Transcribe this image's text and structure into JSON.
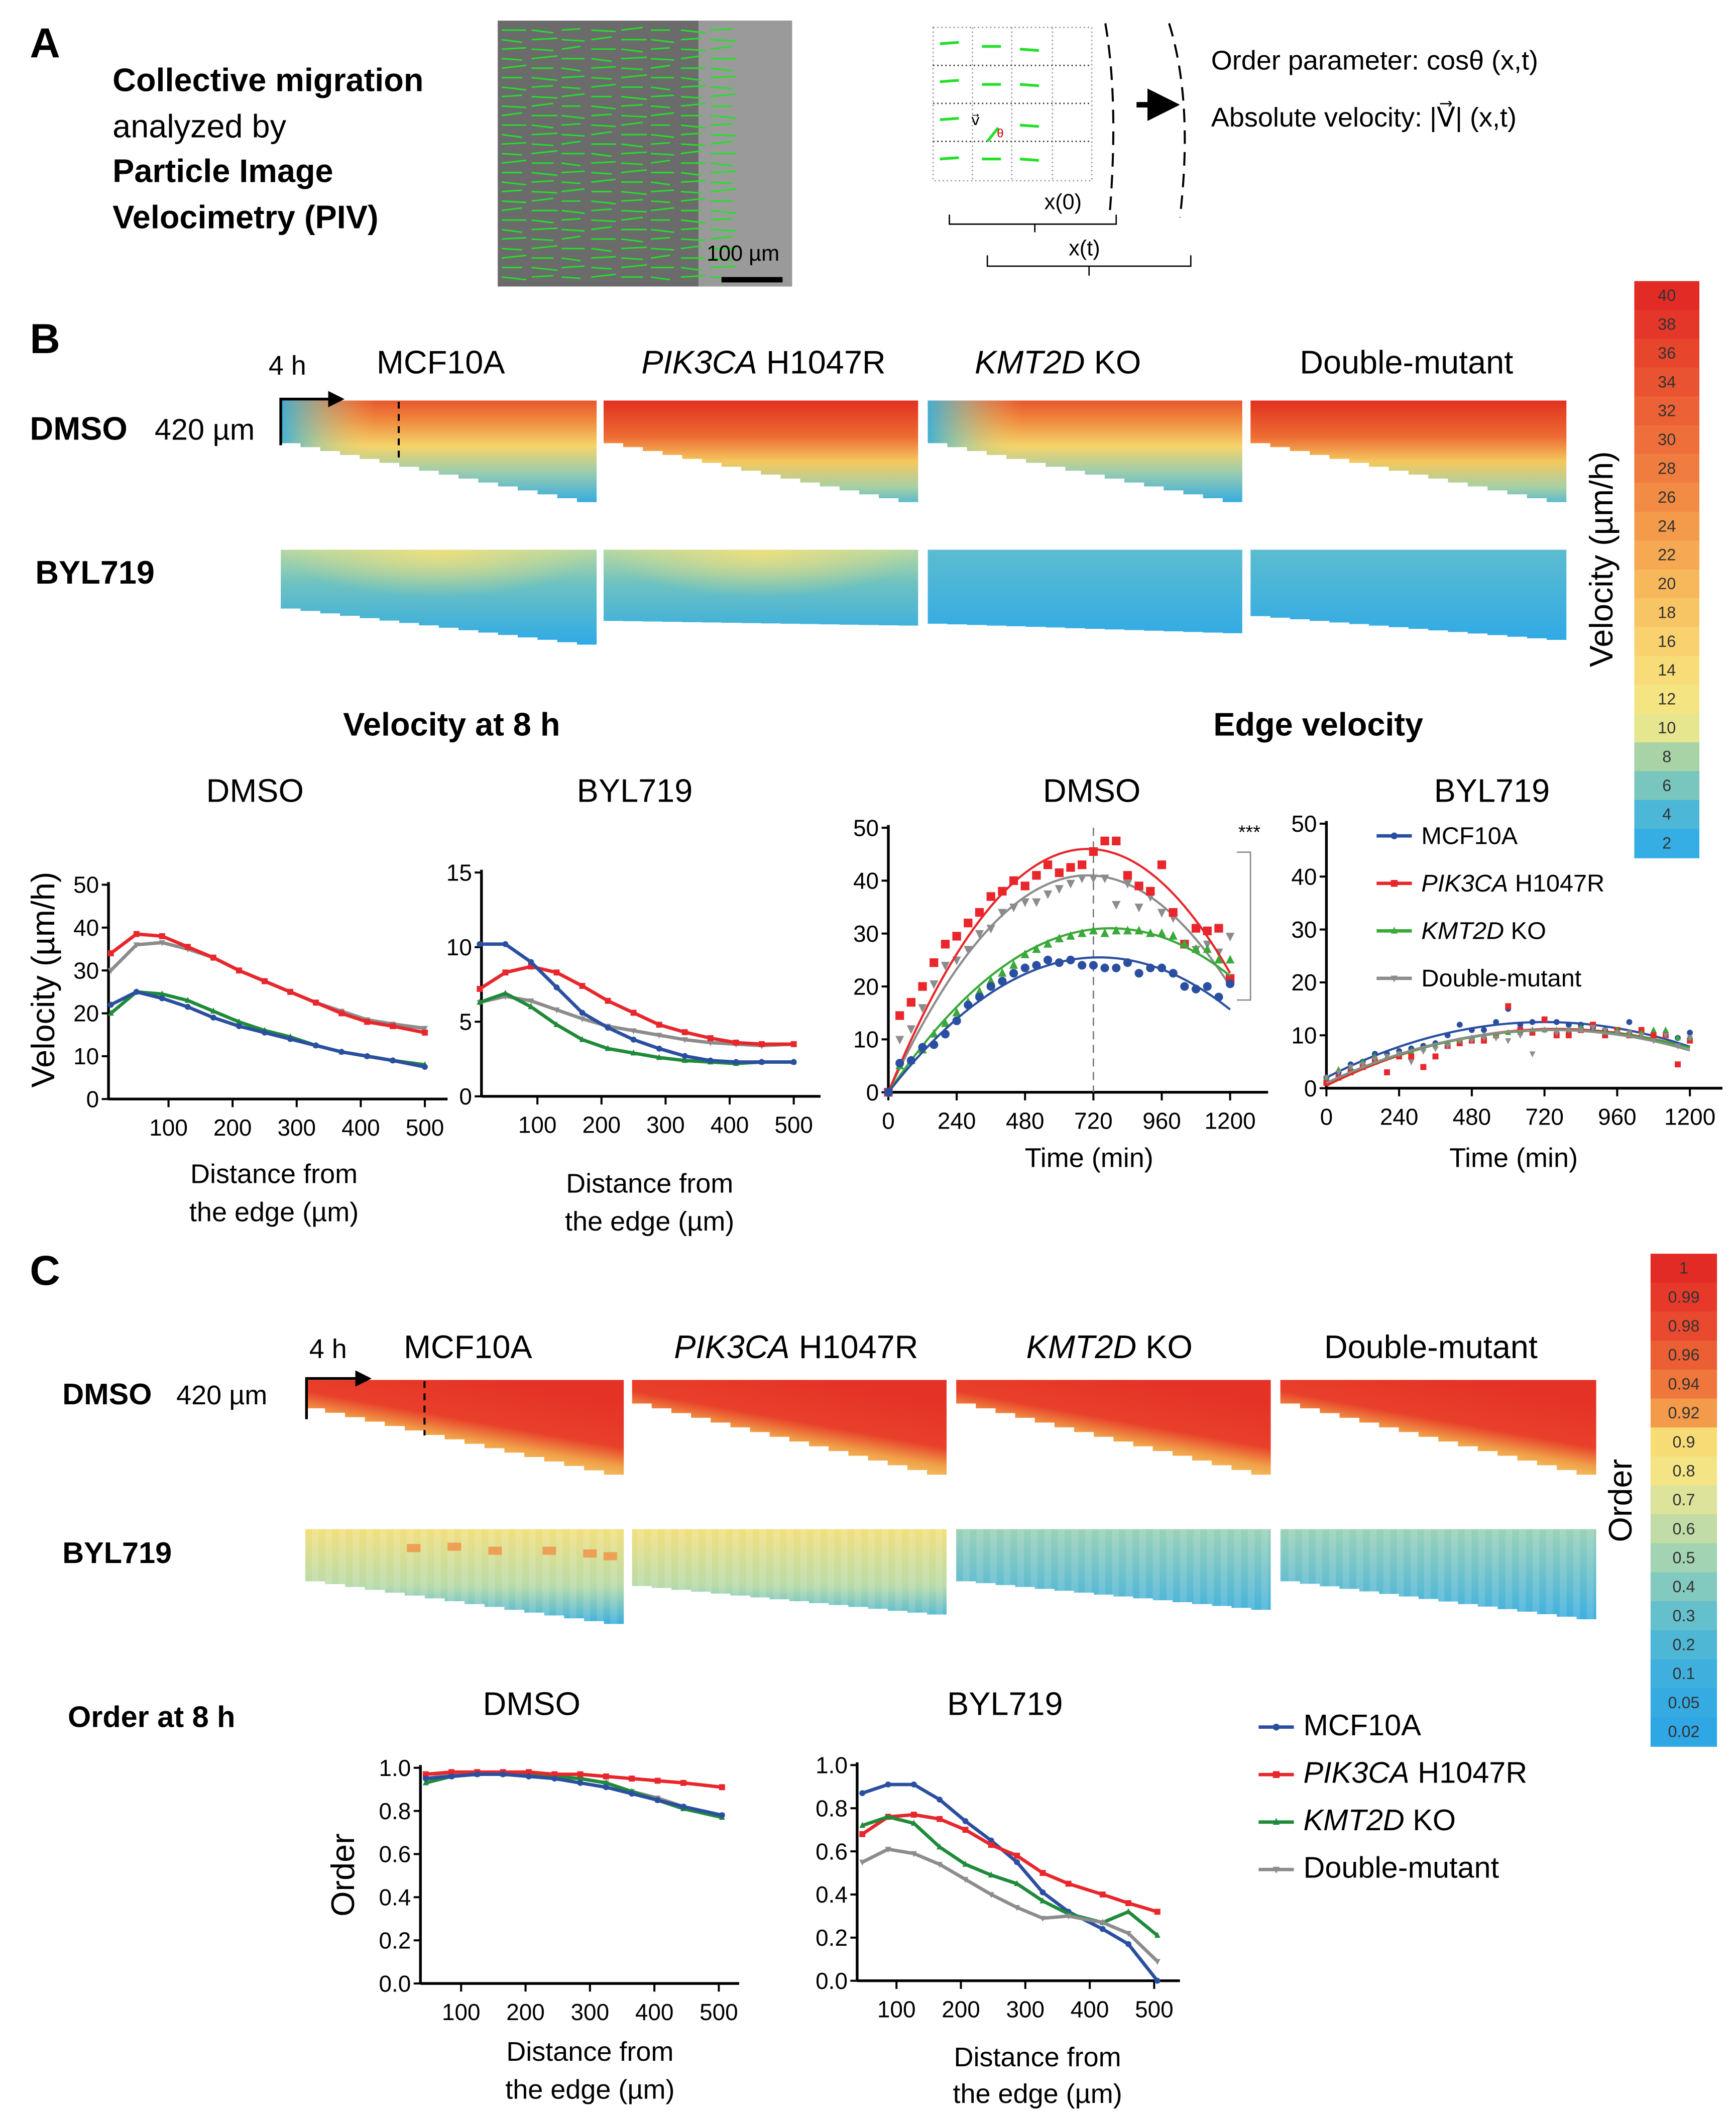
{
  "panel_a": {
    "letter": "A",
    "title_lines": [
      {
        "text": "Collective migration",
        "bold": true
      },
      {
        "text": "analyzed by",
        "bold": false
      },
      {
        "text": "Particle Image",
        "bold": true
      },
      {
        "text": "Velocimetry (PIV)",
        "bold": true
      }
    ],
    "scale_bar_label": "100 µm",
    "vector_label": "v⃗",
    "angle_label": "θ",
    "x0_label": "x(0)",
    "xt_label": "x(t)",
    "order_parameter_label": "Order parameter: cosθ (x,t)",
    "absolute_velocity_label": "Absolute velocity:  |V⃗| (x,t)",
    "vector_color": "#22e02a"
  },
  "conditions": [
    {
      "italic": "",
      "text": "MCF10A"
    },
    {
      "italic": "PIK3CA",
      "text": " H1047R"
    },
    {
      "italic": "KMT2D",
      "text": " KO"
    },
    {
      "italic": "",
      "text": "Double-mutant"
    }
  ],
  "panel_b": {
    "letter": "B",
    "time_label": "4 h",
    "distance_label": "420 µm",
    "row_labels": [
      "DMSO",
      "BYL719"
    ],
    "colorbar_title": "Velocity (µm/h)",
    "colorbar_ticks": [
      "40",
      "38",
      "36",
      "34",
      "32",
      "30",
      "28",
      "26",
      "24",
      "22",
      "20",
      "18",
      "16",
      "14",
      "12",
      "10",
      "8",
      "6",
      "4",
      "2"
    ],
    "colorbar_colors": [
      "#e32b26",
      "#e5362a",
      "#e8452d",
      "#ea5331",
      "#ec6135",
      "#ee6f3a",
      "#f07d3f",
      "#f28b44",
      "#f49a4b",
      "#f6a852",
      "#f7b75b",
      "#f8c565",
      "#f9d16f",
      "#f8dc78",
      "#f5e582",
      "#e6e68e",
      "#a8d3a6",
      "#78c6bd",
      "#4db7d8",
      "#34aee4"
    ],
    "velocity_8h_title": "Velocity at 8 h",
    "edge_velocity_title": "Edge velocity",
    "significance": "***"
  },
  "panel_c": {
    "letter": "C",
    "time_label": "4 h",
    "distance_label": "420 µm",
    "row_labels": [
      "DMSO",
      "BYL719"
    ],
    "colorbar_title": "Order",
    "colorbar_ticks": [
      "1",
      "0.99",
      "0.98",
      "0.96",
      "0.94",
      "0.92",
      "0.9",
      "0.8",
      "0.7",
      "0.6",
      "0.5",
      "0.4",
      "0.3",
      "0.2",
      "0.1",
      "0.05",
      "0.02"
    ],
    "colorbar_colors": [
      "#e32b26",
      "#e6392a",
      "#e9492e",
      "#ec5e34",
      "#ef773c",
      "#f39b4b",
      "#f7dc76",
      "#f3e486",
      "#dde39a",
      "#c1dca6",
      "#a2d3b2",
      "#82c9bf",
      "#64c0cc",
      "#4fb7d6",
      "#3fb0de",
      "#36abe2",
      "#2fa7e5"
    ],
    "order_8h_title": "Order at 8 h"
  },
  "chart_data": [
    {
      "type": "line",
      "title": "DMSO",
      "xlabel": [
        "Distance from",
        "the edge (µm)"
      ],
      "ylabel": "Velocity (µm/h)",
      "xlim": [
        0,
        530
      ],
      "ylim": [
        0,
        50
      ],
      "xticks": [
        100,
        200,
        300,
        400,
        500
      ],
      "yticks": [
        0,
        10,
        20,
        30,
        40,
        50
      ],
      "x": [
        10,
        50,
        90,
        130,
        170,
        210,
        250,
        290,
        330,
        370,
        410,
        450,
        500
      ],
      "series": [
        {
          "name": "Double-mutant",
          "color": "#8c8c8c",
          "marker": "triangle-down",
          "values": [
            30,
            36,
            36.5,
            35,
            33,
            30,
            27.5,
            25,
            22.5,
            20.5,
            18.5,
            17.5,
            16.5
          ]
        },
        {
          "name": "PIK3CA H1047R",
          "color": "#e8262b",
          "marker": "square",
          "values": [
            34,
            38.5,
            38,
            35.5,
            33,
            30,
            27.5,
            25,
            22.5,
            20,
            18,
            17,
            15.5
          ]
        },
        {
          "name": "KMT2D KO",
          "color": "#1f8a3a",
          "marker": "triangle-up",
          "values": [
            20,
            25,
            24.5,
            23,
            20.5,
            18,
            16,
            14.5,
            12.5,
            11,
            10,
            9,
            8
          ]
        },
        {
          "name": "MCF10A",
          "color": "#2b4fa0",
          "marker": "circle",
          "values": [
            22,
            25,
            23.5,
            21.5,
            19,
            17,
            15.5,
            14,
            12.5,
            11,
            10,
            9,
            7.5
          ]
        }
      ]
    },
    {
      "type": "line",
      "title": "BYL719",
      "xlabel": [
        "Distance from",
        "the edge (µm)"
      ],
      "ylabel": "",
      "xlim": [
        0,
        540
      ],
      "ylim": [
        0,
        15
      ],
      "xticks": [
        100,
        200,
        300,
        400,
        500
      ],
      "yticks": [
        0,
        5,
        10,
        15
      ],
      "x": [
        10,
        50,
        90,
        130,
        170,
        210,
        250,
        290,
        330,
        370,
        410,
        450,
        500
      ],
      "series": [
        {
          "name": "Double-mutant",
          "color": "#8c8c8c",
          "marker": "triangle-down",
          "values": [
            6.3,
            6.7,
            6.4,
            5.8,
            5.2,
            4.7,
            4.4,
            4.1,
            3.8,
            3.6,
            3.5,
            3.4,
            3.5
          ]
        },
        {
          "name": "PIK3CA H1047R",
          "color": "#e8262b",
          "marker": "square",
          "values": [
            7.2,
            8.3,
            8.7,
            8.3,
            7.4,
            6.4,
            5.6,
            4.8,
            4.3,
            3.9,
            3.6,
            3.5,
            3.5
          ]
        },
        {
          "name": "KMT2D KO",
          "color": "#1f8a3a",
          "marker": "triangle-up",
          "values": [
            6.3,
            6.9,
            6.0,
            4.8,
            3.8,
            3.2,
            2.9,
            2.6,
            2.4,
            2.3,
            2.2,
            2.3,
            2.3
          ]
        },
        {
          "name": "MCF10A",
          "color": "#2b4fa0",
          "marker": "circle",
          "values": [
            10.2,
            10.2,
            9.0,
            7.3,
            5.6,
            4.6,
            3.8,
            3.2,
            2.7,
            2.4,
            2.3,
            2.3,
            2.3
          ]
        }
      ]
    },
    {
      "type": "scatter",
      "title": "DMSO",
      "xlabel": [
        "Time (min)"
      ],
      "ylabel": "",
      "xlim": [
        0,
        1330
      ],
      "ylim": [
        0,
        50
      ],
      "xticks": [
        0,
        240,
        480,
        720,
        960,
        1200
      ],
      "yticks": [
        0,
        10,
        20,
        30,
        40,
        50
      ],
      "reference_line_x": 720,
      "x": [
        0,
        40,
        80,
        120,
        160,
        200,
        240,
        280,
        320,
        360,
        400,
        440,
        480,
        520,
        560,
        600,
        640,
        680,
        720,
        760,
        800,
        840,
        880,
        920,
        960,
        1000,
        1040,
        1080,
        1120,
        1160,
        1200
      ],
      "series": [
        {
          "name": "Double-mutant",
          "color": "#8c8c8c",
          "marker": "triangle-down",
          "fit": {
            "start": 0,
            "peak_time": 700,
            "peak_value": 41
          },
          "values": [
            0,
            10,
            12,
            16,
            20.5,
            24,
            25,
            27,
            30,
            31,
            34,
            35,
            36,
            36,
            37.5,
            38.5,
            39.5,
            40.5,
            40.5,
            40.5,
            35.5,
            39.5,
            35,
            37,
            34,
            33,
            28,
            27,
            28,
            26.5,
            29.5
          ]
        },
        {
          "name": "PIK3CA H1047R",
          "color": "#e8262b",
          "marker": "square",
          "fit": {
            "start": 0,
            "peak_time": 700,
            "peak_value": 46
          },
          "values": [
            0,
            14.5,
            17,
            20,
            24.5,
            28,
            29.5,
            32,
            34,
            37,
            38,
            40,
            39,
            41,
            43,
            41.5,
            42.5,
            43,
            45.5,
            47.5,
            47.5,
            41,
            39,
            38,
            43,
            34,
            28,
            31,
            30.5,
            31,
            21.5
          ]
        },
        {
          "name": "KMT2D KO",
          "color": "#3aa83a",
          "marker": "triangle-up",
          "fit": {
            "start": 0,
            "peak_time": 780,
            "peak_value": 31
          },
          "values": [
            0,
            5,
            6,
            8,
            11,
            13,
            15,
            17,
            19,
            21,
            22.5,
            24,
            26,
            27,
            28,
            29,
            29.5,
            30,
            30.5,
            30,
            30.5,
            30.5,
            30.5,
            30,
            30,
            29.5,
            28,
            27,
            27,
            25,
            25
          ]
        },
        {
          "name": "MCF10A",
          "color": "#2b4fa0",
          "marker": "circle",
          "fit": {
            "start": 0,
            "peak_time": 740,
            "peak_value": 25.5
          },
          "values": [
            0,
            5.5,
            6,
            8.5,
            9,
            11,
            13.5,
            16.5,
            18,
            20,
            21,
            22.5,
            23.5,
            24,
            25,
            24.5,
            25,
            24,
            24,
            23.5,
            23.5,
            24.5,
            22.5,
            23.5,
            23.5,
            22.5,
            20,
            19.5,
            20,
            18,
            20.5
          ]
        }
      ]
    },
    {
      "type": "scatter",
      "title": "BYL719",
      "xlabel": [
        "Time (min)"
      ],
      "ylabel": "",
      "xlim": [
        0,
        1310
      ],
      "ylim": [
        0,
        50
      ],
      "xticks": [
        0,
        240,
        480,
        720,
        960,
        1200
      ],
      "yticks": [
        0,
        10,
        20,
        30,
        40,
        50
      ],
      "legend": "top-right",
      "x": [
        0,
        40,
        80,
        120,
        160,
        200,
        240,
        280,
        320,
        360,
        400,
        440,
        480,
        520,
        560,
        600,
        640,
        680,
        720,
        760,
        800,
        840,
        880,
        920,
        960,
        1000,
        1040,
        1080,
        1120,
        1160,
        1200
      ],
      "series": [
        {
          "name": "MCF10A",
          "name_italic": "",
          "color": "#2b4fa0",
          "marker": "circle",
          "fit": {
            "start": 2,
            "peak_time": 720,
            "peak_value": 12.5
          },
          "values": [
            2,
            3,
            4.5,
            5,
            6.5,
            6.5,
            7,
            7.5,
            8,
            8.5,
            10,
            12,
            11,
            11,
            12.5,
            15,
            12,
            12.5,
            13,
            12.5,
            12,
            12,
            11.5,
            11,
            11,
            12.5,
            11,
            10,
            10,
            9.5,
            10.5
          ]
        },
        {
          "name": "PIK3CA H1047R",
          "name_italic": "PIK3CA",
          "color": "#e8262b",
          "marker": "square",
          "fit": {
            "start": 0.5,
            "peak_time": 760,
            "peak_value": 11.2
          },
          "values": [
            1,
            2,
            3,
            4,
            5,
            3,
            6,
            6,
            4,
            6,
            8,
            8.5,
            9,
            9,
            10,
            15.5,
            11,
            10.5,
            13,
            10,
            10,
            11,
            12,
            10,
            11,
            10,
            11,
            10,
            10,
            4.5,
            9
          ]
        },
        {
          "name": "KMT2D KO",
          "name_italic": "KMT2D",
          "color": "#3aa83a",
          "marker": "triangle-up",
          "fit": {
            "start": 1,
            "peak_time": 760,
            "peak_value": 11
          },
          "values": [
            2,
            3.5,
            4,
            5,
            6,
            6,
            6.5,
            7,
            7.5,
            8,
            8.5,
            9,
            9.5,
            10,
            10,
            10.5,
            10.5,
            11,
            11,
            11,
            11,
            11.5,
            11,
            10.5,
            11,
            10.5,
            10.5,
            11,
            11,
            9.5,
            9.5
          ]
        },
        {
          "name": "Double-mutant",
          "name_italic": "",
          "color": "#8c8c8c",
          "marker": "triangle-down",
          "fit": {
            "start": 1,
            "peak_time": 740,
            "peak_value": 11
          },
          "values": [
            2,
            3,
            4,
            4.5,
            5.5,
            6,
            6.5,
            5,
            7,
            7.5,
            8,
            9,
            9,
            9.5,
            9.5,
            9,
            10,
            6.5,
            11,
            10.5,
            11,
            11,
            11.5,
            11,
            10.5,
            10.5,
            10,
            9,
            10,
            8,
            9.5
          ]
        }
      ]
    },
    {
      "type": "line",
      "title": "DMSO",
      "xlabel": [
        "Distance from",
        "the edge (µm)"
      ],
      "ylabel": "Order",
      "xlim": [
        40,
        530
      ],
      "ylim": [
        0,
        1.0
      ],
      "xticks": [
        100,
        200,
        300,
        400,
        500
      ],
      "yticks": [
        "0.0",
        "0.2",
        "0.4",
        "0.6",
        "0.8",
        "1.0"
      ],
      "x": [
        45,
        85,
        125,
        165,
        205,
        245,
        285,
        325,
        365,
        405,
        445,
        505
      ],
      "series": [
        {
          "name": "Double-mutant",
          "color": "#8c8c8c",
          "marker": "triangle-down",
          "values": [
            0.95,
            0.97,
            0.97,
            0.97,
            0.96,
            0.96,
            0.95,
            0.93,
            0.89,
            0.86,
            0.82,
            0.78
          ]
        },
        {
          "name": "KMT2D KO",
          "color": "#1f8a3a",
          "marker": "triangle-up",
          "values": [
            0.93,
            0.96,
            0.97,
            0.97,
            0.97,
            0.96,
            0.95,
            0.93,
            0.89,
            0.85,
            0.81,
            0.77
          ]
        },
        {
          "name": "PIK3CA H1047R",
          "color": "#e8262b",
          "marker": "square",
          "values": [
            0.97,
            0.98,
            0.98,
            0.98,
            0.98,
            0.97,
            0.97,
            0.96,
            0.95,
            0.94,
            0.93,
            0.91
          ]
        },
        {
          "name": "MCF10A",
          "color": "#2b4fa0",
          "marker": "circle",
          "values": [
            0.95,
            0.96,
            0.97,
            0.97,
            0.96,
            0.95,
            0.93,
            0.91,
            0.88,
            0.85,
            0.82,
            0.78
          ]
        }
      ]
    },
    {
      "type": "line",
      "title": "BYL719",
      "xlabel": [
        "Distance from",
        "the edge (µm)"
      ],
      "ylabel": "",
      "xlim": [
        40,
        540
      ],
      "ylim": [
        0,
        1.0
      ],
      "xticks": [
        100,
        200,
        300,
        400,
        500
      ],
      "yticks": [
        "0.0",
        "0.2",
        "0.4",
        "0.6",
        "0.8",
        "1.0"
      ],
      "legend": "right",
      "x": [
        47,
        87,
        127,
        167,
        207,
        247,
        287,
        327,
        367,
        420,
        460,
        505
      ],
      "series": [
        {
          "name": "MCF10A",
          "name_italic": "",
          "color": "#2b4fa0",
          "marker": "circle",
          "values": [
            0.87,
            0.91,
            0.91,
            0.84,
            0.74,
            0.65,
            0.55,
            0.41,
            0.32,
            0.24,
            0.17,
            0.0
          ]
        },
        {
          "name": "PIK3CA H1047R",
          "name_italic": "PIK3CA",
          "color": "#e8262b",
          "marker": "square",
          "values": [
            0.68,
            0.76,
            0.77,
            0.75,
            0.7,
            0.63,
            0.58,
            0.5,
            0.45,
            0.4,
            0.36,
            0.32
          ]
        },
        {
          "name": "KMT2D KO",
          "name_italic": "KMT2D",
          "color": "#1f8a3a",
          "marker": "triangle-up",
          "values": [
            0.72,
            0.76,
            0.73,
            0.62,
            0.54,
            0.49,
            0.45,
            0.37,
            0.31,
            0.27,
            0.32,
            0.21
          ]
        },
        {
          "name": "Double-mutant",
          "name_italic": "",
          "color": "#8c8c8c",
          "marker": "triangle-down",
          "values": [
            0.55,
            0.61,
            0.59,
            0.54,
            0.47,
            0.4,
            0.34,
            0.29,
            0.3,
            0.27,
            0.22,
            0.09
          ]
        }
      ]
    }
  ]
}
